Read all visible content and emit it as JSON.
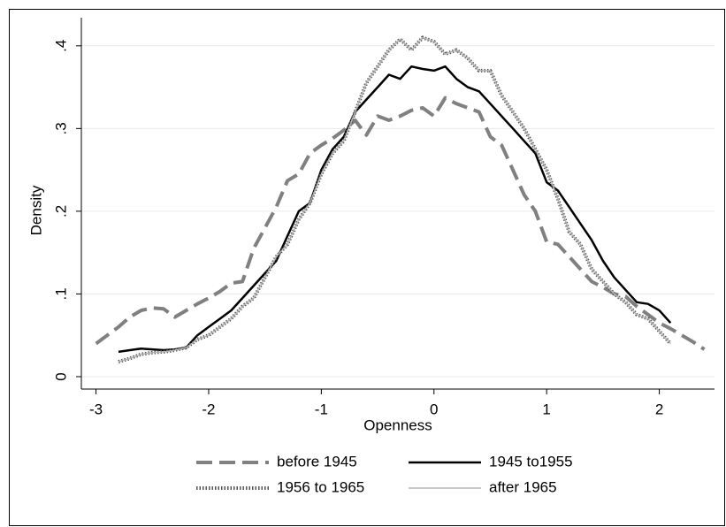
{
  "chart_data": {
    "type": "line",
    "x_label": "Openness",
    "y_label": "Density",
    "x": [
      -3,
      -2.9,
      -2.8,
      -2.7,
      -2.6,
      -2.5,
      -2.4,
      -2.3,
      -2.2,
      -2.1,
      -2,
      -1.9,
      -1.8,
      -1.7,
      -1.6,
      -1.5,
      -1.4,
      -1.3,
      -1.2,
      -1.1,
      -1,
      -0.9,
      -0.8,
      -0.7,
      -0.6,
      -0.5,
      -0.4,
      -0.3,
      -0.2,
      -0.1,
      0,
      0.1,
      0.2,
      0.3,
      0.4,
      0.5,
      0.6,
      0.7,
      0.8,
      0.9,
      1,
      1.1,
      1.2,
      1.3,
      1.4,
      1.5,
      1.6,
      1.7,
      1.8,
      1.9,
      2,
      2.1,
      2.2,
      2.3,
      2.4
    ],
    "series": [
      {
        "name": "before 1945",
        "color": "#808080",
        "style": "dashed",
        "width": 4,
        "values": [
          0.04,
          0.05,
          0.06,
          0.072,
          0.08,
          0.083,
          0.082,
          0.072,
          0.08,
          0.088,
          0.095,
          0.103,
          0.113,
          0.115,
          0.155,
          0.18,
          0.205,
          0.237,
          0.245,
          0.27,
          0.28,
          0.288,
          0.298,
          0.31,
          0.292,
          0.315,
          0.31,
          0.315,
          0.322,
          0.325,
          0.315,
          0.337,
          0.33,
          0.325,
          0.32,
          0.29,
          0.28,
          0.25,
          0.22,
          0.2,
          0.163,
          0.16,
          0.145,
          0.13,
          0.115,
          0.108,
          0.1,
          0.097,
          0.085,
          0.075,
          0.065,
          0.058,
          0.05,
          0.042,
          0.033
        ]
      },
      {
        "name": "1945 to1955",
        "color": "#000000",
        "style": "solid",
        "width": 2.5,
        "values": [
          null,
          null,
          0.03,
          0.032,
          0.034,
          0.033,
          0.032,
          0.033,
          0.035,
          0.05,
          0.06,
          0.07,
          0.08,
          0.095,
          0.11,
          0.125,
          0.14,
          0.17,
          0.2,
          0.21,
          0.25,
          0.275,
          0.29,
          0.32,
          0.335,
          0.35,
          0.365,
          0.36,
          0.375,
          0.372,
          0.37,
          0.375,
          0.36,
          0.35,
          0.345,
          0.33,
          0.315,
          0.3,
          0.285,
          0.27,
          0.235,
          0.225,
          0.205,
          0.185,
          0.165,
          0.14,
          0.12,
          0.105,
          0.09,
          0.088,
          0.08,
          0.065,
          null,
          null,
          null
        ]
      },
      {
        "name": "1956 to 1965",
        "color": "#555555",
        "style": "dotted",
        "width": 4,
        "values": [
          null,
          null,
          0.018,
          0.022,
          0.027,
          0.029,
          0.03,
          0.032,
          0.035,
          0.045,
          0.05,
          0.06,
          0.07,
          0.085,
          0.095,
          0.12,
          0.145,
          0.16,
          0.19,
          0.21,
          0.245,
          0.27,
          0.285,
          0.32,
          0.355,
          0.375,
          0.395,
          0.408,
          0.395,
          0.41,
          0.405,
          0.39,
          0.395,
          0.385,
          0.37,
          0.37,
          0.34,
          0.32,
          0.3,
          0.275,
          0.25,
          0.215,
          0.175,
          0.16,
          0.13,
          0.115,
          0.1,
          0.09,
          0.075,
          0.07,
          0.055,
          0.04,
          null,
          null,
          null
        ]
      },
      {
        "name": "after 1965",
        "color": "#b4b4b4",
        "style": "solid",
        "width": 1.5,
        "values": [
          null,
          null,
          0.018,
          0.022,
          0.027,
          0.029,
          0.03,
          0.032,
          0.035,
          0.045,
          0.05,
          0.06,
          0.07,
          0.085,
          0.095,
          0.12,
          0.145,
          0.16,
          0.19,
          0.21,
          0.245,
          0.27,
          0.285,
          0.32,
          0.355,
          0.375,
          0.395,
          0.408,
          0.395,
          0.41,
          0.405,
          0.39,
          0.395,
          0.385,
          0.37,
          0.37,
          0.34,
          0.32,
          0.3,
          0.275,
          0.25,
          0.215,
          0.175,
          0.16,
          0.13,
          0.115,
          0.1,
          0.09,
          0.075,
          0.07,
          0.055,
          0.04,
          null,
          null,
          null
        ]
      }
    ],
    "xlim": [
      -3.13,
      2.49
    ],
    "xticks": [
      -3,
      -2,
      -1,
      0,
      1,
      2
    ],
    "ylim": [
      -0.015,
      0.434
    ],
    "yticks": [
      0,
      {
        "value": 0.1,
        "label": ".1"
      },
      {
        "value": 0.2,
        "label": ".2"
      },
      {
        "value": 0.3,
        "label": ".3"
      },
      {
        "value": 0.4,
        "label": ".4"
      }
    ],
    "grid": true
  }
}
